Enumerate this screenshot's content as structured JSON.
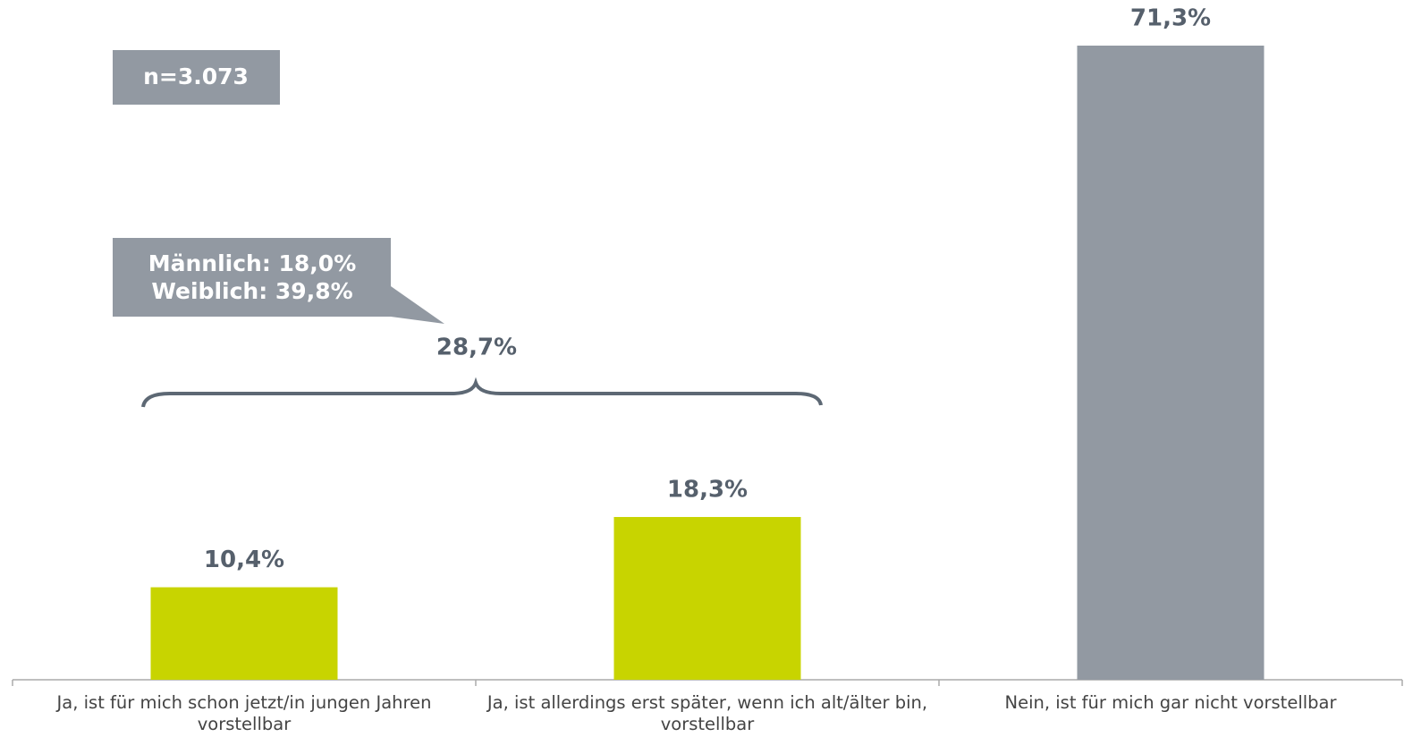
{
  "chart_data": {
    "type": "bar",
    "categories": [
      "Ja, ist für mich schon jetzt/in jungen Jahren vorstellbar",
      "Ja, ist allerdings erst später, wenn ich alt/älter bin, vorstellbar",
      "Nein, ist für mich gar nicht vorstellbar"
    ],
    "values": [
      10.4,
      18.3,
      71.3
    ],
    "value_labels": [
      "10,4%",
      "18,3%",
      "71,3%"
    ],
    "colors": [
      "#c8d400",
      "#c8d400",
      "#9299a2"
    ],
    "annotations": [
      "n=3.073",
      "Männlich: 18,0%",
      "Weiblich: 39,8%",
      "28,7%"
    ]
  }
}
